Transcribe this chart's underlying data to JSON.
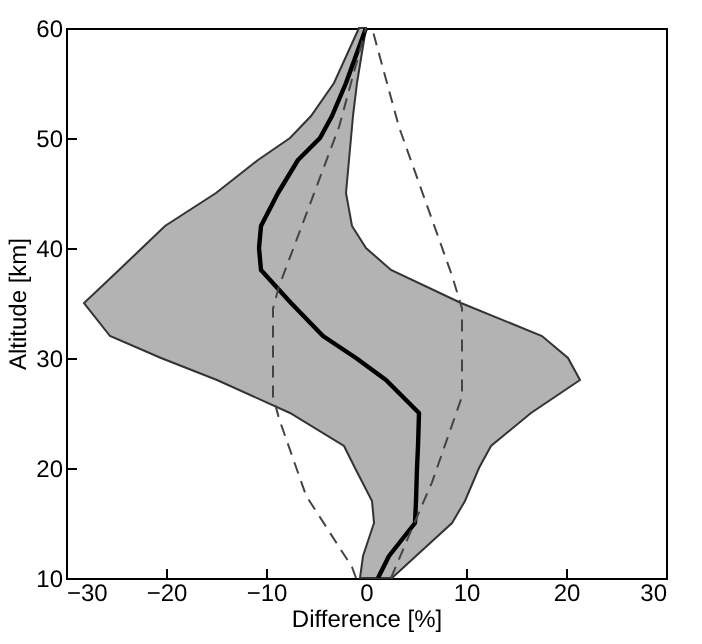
{
  "chart_data": {
    "type": "line",
    "orientation": "horizontal",
    "xlabel": "Difference [%]",
    "ylabel": "Altitude [km]",
    "xlim": [
      -30,
      30
    ],
    "xticks": [
      {
        "value": -30,
        "label": "−30"
      },
      {
        "value": -20,
        "label": "−20"
      },
      {
        "value": -10,
        "label": "−10"
      },
      0,
      10,
      20,
      30
    ],
    "ylim": [
      10,
      60
    ],
    "yticks": [
      10,
      20,
      30,
      40,
      50,
      60
    ],
    "grid": false,
    "series": [
      {
        "color": "#000000",
        "line_style": "solid",
        "x": [
          10,
          12,
          15,
          17,
          20,
          22,
          25,
          28,
          30,
          32,
          35,
          38,
          40,
          42,
          45,
          48,
          50,
          52,
          55,
          60
        ],
        "values": [
          1.2,
          2.3,
          4.9,
          5.0,
          5.1,
          5.2,
          5.3,
          2.0,
          -1.0,
          -4.3,
          -7.5,
          -10.5,
          -10.7,
          -10.5,
          -8.8,
          -6.8,
          -4.6,
          -3.4,
          -2.0,
          0
        ],
        "lower": [
          -0.6,
          -0.3,
          0.8,
          0.6,
          -1.1,
          -2.2,
          -7.6,
          -14.9,
          -20.5,
          -25.6,
          -28.2,
          -24.7,
          -22.4,
          -20.1,
          -15.0,
          -10.8,
          -7.6,
          -5.5,
          -3.2,
          -0.7
        ],
        "upper": [
          2.6,
          5.0,
          8.6,
          9.9,
          11.3,
          12.5,
          16.5,
          21.4,
          20.2,
          17.6,
          9.5,
          2.5,
          0.0,
          -1.4,
          -2.0,
          -1.7,
          -1.5,
          -1.3,
          -0.9,
          0
        ]
      },
      {
        "color": "#444444",
        "line_style": "dashed",
        "x": [
          10,
          11,
          17.5,
          24.5,
          26.5,
          34.5,
          36.5,
          51,
          60
        ],
        "values": [
          -1.0,
          -1.4,
          -6.0,
          -8.7,
          -9.3,
          -9.3,
          -8.7,
          -2.7,
          0
        ]
      },
      {
        "color": "#444444",
        "line_style": "dashed",
        "x": [
          10,
          14.5,
          18.7,
          26.5,
          34.5,
          37.5,
          51,
          60
        ],
        "values": [
          2.5,
          4.6,
          6.6,
          9.6,
          9.6,
          8.6,
          3.3,
          0.6
        ]
      }
    ]
  }
}
